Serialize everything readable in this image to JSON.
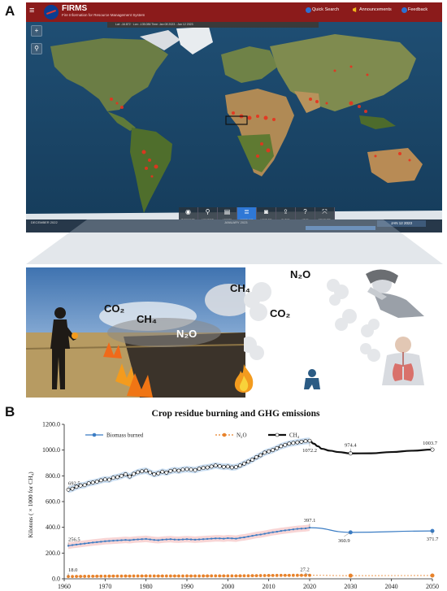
{
  "panels": {
    "a": "A",
    "b": "B"
  },
  "firms": {
    "title": "FIRMS",
    "subtitle": "Fire Information for Resource Management System",
    "quick_search": "Quick Search",
    "announcements": "Announcements",
    "feedback": "Feedback",
    "coords_text": "Lat: -16.872 · Lon: -135.086    Time: Jan 08 2023 - Jan 12 2023",
    "tools": [
      {
        "icon": "◉",
        "label": "BASEMAPS"
      },
      {
        "icon": "⚲",
        "label": "LOCATION"
      },
      {
        "icon": "▤",
        "label": "LAYERS"
      },
      {
        "icon": "≣",
        "label": "OVERLAYS"
      },
      {
        "icon": "◙",
        "label": "CAPTURE"
      },
      {
        "icon": "⇪",
        "label": "SHARE"
      },
      {
        "icon": "?",
        "label": "HELP"
      },
      {
        "icon": "⤧",
        "label": "MEASURE"
      }
    ],
    "timeline": {
      "left_month": "DECEMBER 2022",
      "center_month": "JANUARY 2023",
      "date": "JAN 12 2023"
    },
    "side_buttons": [
      "+",
      "−"
    ]
  },
  "scene": {
    "labels": {
      "co2_a": "CO₂",
      "ch4_a": "CH₄",
      "n2o_a": "N₂O",
      "ch4_b": "CH₄",
      "n2o_b": "N₂O",
      "co2_b": "CO₂"
    }
  },
  "colors": {
    "accent_red": "#8b1b1b",
    "ocean": "#1d4a6e",
    "fire": "#e8321e",
    "biomass": "#3a7cc4",
    "n2o": "#e8822a",
    "ch4": "#111111"
  },
  "chart_data": {
    "type": "line",
    "title": "Crop residue burning and GHG emissions",
    "xlabel": "",
    "ylabel": "Kilotons ( × 1000 for CH₄)",
    "xlim": [
      1960,
      2050
    ],
    "ylim": [
      0,
      1200
    ],
    "x_ticks": [
      1960,
      1970,
      1980,
      1990,
      2000,
      2010,
      2020,
      2030,
      2040,
      2050
    ],
    "y_ticks": [
      "0.0",
      "200.0",
      "400.0",
      "600.0",
      "800.0",
      "1000.0",
      "1200.0"
    ],
    "legend_position": "top-left",
    "series": [
      {
        "name": "Biomass burned",
        "x": [
          1961,
          1962,
          1963,
          1964,
          1965,
          1966,
          1967,
          1968,
          1969,
          1970,
          1971,
          1972,
          1973,
          1974,
          1975,
          1976,
          1977,
          1978,
          1979,
          1980,
          1981,
          1982,
          1983,
          1984,
          1985,
          1986,
          1987,
          1988,
          1989,
          1990,
          1991,
          1992,
          1993,
          1994,
          1995,
          1996,
          1997,
          1998,
          1999,
          2000,
          2001,
          2002,
          2003,
          2004,
          2005,
          2006,
          2007,
          2008,
          2009,
          2010,
          2011,
          2012,
          2013,
          2014,
          2015,
          2016,
          2017,
          2018,
          2019,
          2020,
          2030,
          2050
        ],
        "values": [
          256.5,
          262,
          266,
          270,
          274,
          278,
          282,
          285,
          288,
          292,
          294,
          296,
          298,
          300,
          302,
          300,
          304,
          306,
          308,
          310,
          306,
          302,
          300,
          304,
          306,
          308,
          305,
          304,
          306,
          308,
          306,
          304,
          306,
          308,
          310,
          312,
          314,
          314,
          312,
          316,
          314,
          312,
          318,
          322,
          328,
          334,
          340,
          344,
          350,
          356,
          362,
          366,
          372,
          376,
          380,
          384,
          388,
          390,
          392,
          397.1,
          360.9,
          371.7
        ],
        "point_labels": {
          "1961": "256.5",
          "2020": "397.1",
          "2030": "360.9",
          "2050": "371.7"
        }
      },
      {
        "name": "N₂O",
        "x": [
          1961,
          1962,
          1963,
          1964,
          1965,
          1966,
          1967,
          1968,
          1969,
          1970,
          1971,
          1972,
          1973,
          1974,
          1975,
          1976,
          1977,
          1978,
          1979,
          1980,
          1981,
          1982,
          1983,
          1984,
          1985,
          1986,
          1987,
          1988,
          1989,
          1990,
          1991,
          1992,
          1993,
          1994,
          1995,
          1996,
          1997,
          1998,
          1999,
          2000,
          2001,
          2002,
          2003,
          2004,
          2005,
          2006,
          2007,
          2008,
          2009,
          2010,
          2011,
          2012,
          2013,
          2014,
          2015,
          2016,
          2017,
          2018,
          2019,
          2020,
          2030,
          2050
        ],
        "values": [
          18.0,
          18.3,
          18.6,
          18.9,
          19.2,
          19.5,
          19.8,
          20.0,
          20.3,
          20.6,
          20.8,
          21.0,
          21.2,
          21.4,
          21.6,
          21.5,
          21.8,
          22.0,
          22.2,
          22.4,
          22.1,
          21.9,
          21.8,
          22.0,
          22.2,
          22.3,
          22.1,
          22.0,
          22.2,
          22.4,
          22.2,
          22.1,
          22.2,
          22.4,
          22.5,
          22.7,
          22.9,
          22.9,
          22.7,
          23.0,
          22.9,
          22.7,
          23.2,
          23.5,
          23.9,
          24.3,
          24.7,
          25.0,
          25.4,
          25.8,
          26.1,
          26.4,
          26.7,
          26.9,
          27.0,
          27.1,
          27.2,
          27.2,
          27.2,
          27.2,
          24.8,
          25.6
        ],
        "point_labels": {
          "1961": "18.0",
          "2020": "27.2"
        }
      },
      {
        "name": "CH₄",
        "x": [
          1961,
          1962,
          1963,
          1964,
          1965,
          1966,
          1967,
          1968,
          1969,
          1970,
          1971,
          1972,
          1973,
          1974,
          1975,
          1976,
          1977,
          1978,
          1979,
          1980,
          1981,
          1982,
          1983,
          1984,
          1985,
          1986,
          1987,
          1988,
          1989,
          1990,
          1991,
          1992,
          1993,
          1994,
          1995,
          1996,
          1997,
          1998,
          1999,
          2000,
          2001,
          2002,
          2003,
          2004,
          2005,
          2006,
          2007,
          2008,
          2009,
          2010,
          2011,
          2012,
          2013,
          2014,
          2015,
          2016,
          2017,
          2018,
          2019,
          2020,
          2021,
          2022,
          2023,
          2025,
          2027,
          2030,
          2035,
          2040,
          2045,
          2050
        ],
        "values": [
          692.5,
          700,
          715,
          725,
          728,
          742,
          748,
          755,
          765,
          772,
          770,
          785,
          790,
          800,
          812,
          795,
          815,
          828,
          835,
          840,
          826,
          812,
          820,
          832,
          825,
          838,
          845,
          840,
          848,
          852,
          848,
          845,
          855,
          862,
          865,
          872,
          880,
          875,
          870,
          872,
          865,
          868,
          880,
          895,
          910,
          925,
          945,
          960,
          980,
          990,
          1000,
          1015,
          1030,
          1040,
          1050,
          1055,
          1060,
          1065,
          1070,
          1072.2,
          1050,
          1030,
          1010,
          995,
          985,
          974.4,
          975,
          985,
          995,
          1003.7
        ],
        "point_labels": {
          "1961": "692.5",
          "2020": "1072.2",
          "2030": "974.4",
          "2050": "1003.7"
        }
      }
    ]
  }
}
